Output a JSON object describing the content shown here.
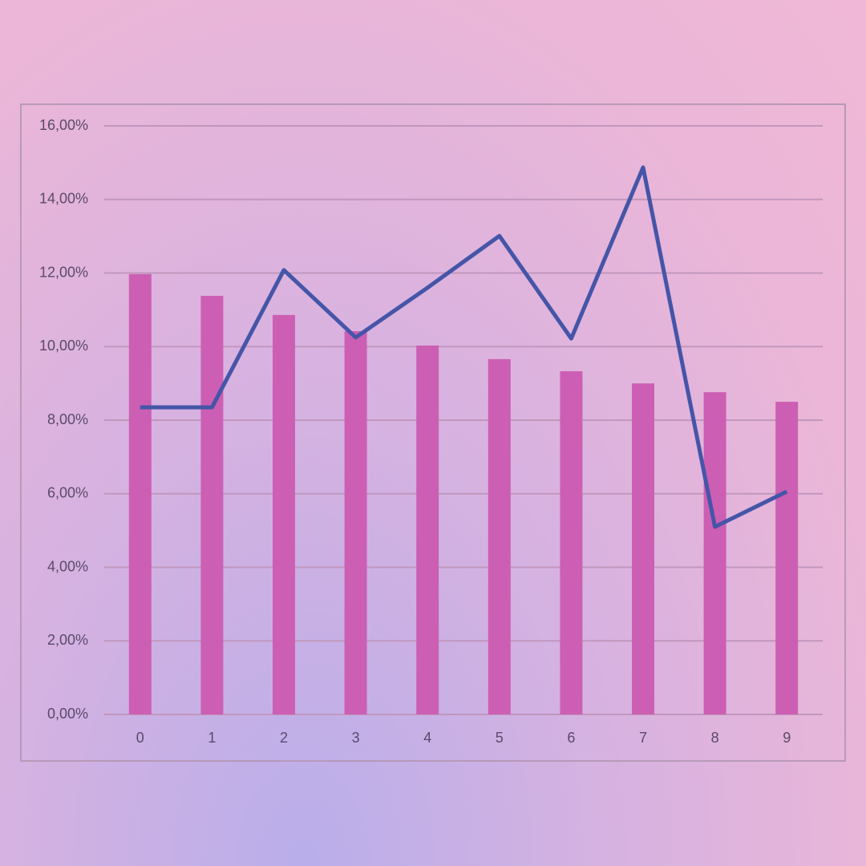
{
  "chart_data": {
    "type": "bar-line",
    "categories": [
      "0",
      "1",
      "2",
      "3",
      "4",
      "5",
      "6",
      "7",
      "8",
      "9"
    ],
    "series": [
      {
        "type": "bar",
        "color": "#cc5fb3",
        "values": [
          11.97,
          11.38,
          10.86,
          10.42,
          10.03,
          9.66,
          9.33,
          9.0,
          8.76,
          8.5
        ]
      },
      {
        "type": "line",
        "color": "#4555a8",
        "values": [
          8.35,
          8.35,
          12.08,
          10.25,
          11.6,
          13.01,
          10.22,
          14.87,
          5.1,
          6.06
        ]
      }
    ],
    "ylim": [
      0,
      16
    ],
    "yticks": [
      {
        "value": 0,
        "label": "0,00%"
      },
      {
        "value": 2,
        "label": "2,00%"
      },
      {
        "value": 4,
        "label": "4,00%"
      },
      {
        "value": 6,
        "label": "6,00%"
      },
      {
        "value": 8,
        "label": "8,00%"
      },
      {
        "value": 10,
        "label": "10,00%"
      },
      {
        "value": 12,
        "label": "12,00%"
      },
      {
        "value": 14,
        "label": "14,00%"
      },
      {
        "value": 16,
        "label": "16,00%"
      }
    ],
    "grid": true
  }
}
